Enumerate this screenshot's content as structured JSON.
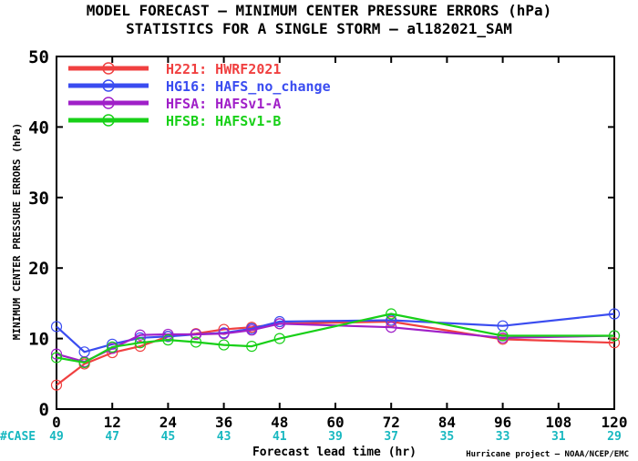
{
  "chart_data": {
    "type": "line",
    "title": "MODEL FORECAST – MINIMUM CENTER PRESSURE ERRORS (hPa)",
    "subtitle": "STATISTICS FOR A SINGLE STORM – al182021_SAM",
    "xlabel": "Forecast lead time (hr)",
    "ylabel": "MINIMUM CENTER PRESSURE ERRORS (hPa)",
    "xlim": [
      0,
      120
    ],
    "ylim": [
      0,
      50
    ],
    "x_ticks": [
      0,
      12,
      24,
      36,
      48,
      60,
      72,
      84,
      96,
      108,
      120
    ],
    "y_ticks": [
      0,
      10,
      20,
      30,
      40,
      50
    ],
    "grid": false,
    "legend_position": "top-left",
    "case_label": "#CASE",
    "cases": [
      49,
      47,
      45,
      43,
      41,
      39,
      37,
      35,
      33,
      31,
      29
    ],
    "credit": "Hurricane project – NOAA/NCEP/EMC",
    "series": [
      {
        "name": "H221: HWRF2021",
        "color": "#f04040",
        "x": [
          0,
          6,
          12,
          18,
          24,
          30,
          36,
          42,
          48,
          72,
          96,
          120
        ],
        "y": [
          3.4,
          6.4,
          8.0,
          8.9,
          10.3,
          10.7,
          11.3,
          11.6,
          12.1,
          12.4,
          9.9,
          9.4
        ]
      },
      {
        "name": "HG16: HAFS_no_change",
        "color": "#3a4cf0",
        "x": [
          0,
          6,
          12,
          18,
          24,
          30,
          36,
          42,
          48,
          72,
          96,
          120
        ],
        "y": [
          11.7,
          8.1,
          9.2,
          10.1,
          10.3,
          10.6,
          10.8,
          11.4,
          12.4,
          12.6,
          11.8,
          13.5
        ]
      },
      {
        "name": "HFSA: HAFSv1-A",
        "color": "#a020c8",
        "x": [
          0,
          6,
          12,
          18,
          24,
          30,
          36,
          42,
          48,
          72,
          96,
          120
        ],
        "y": [
          7.8,
          6.7,
          8.6,
          10.5,
          10.6,
          10.6,
          10.7,
          11.2,
          12.1,
          11.6,
          10.1,
          10.4
        ]
      },
      {
        "name": "HFSB: HAFSv1-B",
        "color": "#18d018",
        "x": [
          0,
          6,
          12,
          18,
          24,
          30,
          36,
          42,
          48,
          72,
          96,
          120
        ],
        "y": [
          7.3,
          6.6,
          8.8,
          9.4,
          9.8,
          9.5,
          9.1,
          8.9,
          10.0,
          13.5,
          10.4,
          10.4
        ]
      }
    ]
  }
}
